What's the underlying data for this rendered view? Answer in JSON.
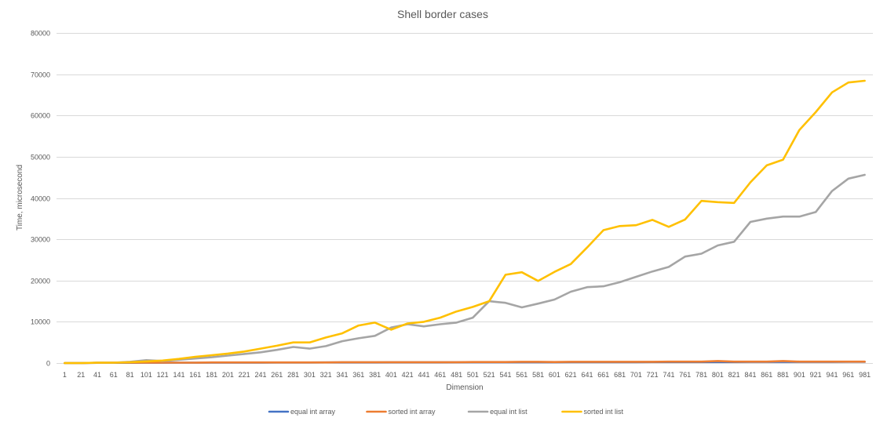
{
  "chart_data": {
    "type": "line",
    "title": "Shell border cases",
    "xlabel": "Dimension",
    "ylabel": "Time, microsecond",
    "ylim": [
      0,
      80000
    ],
    "yticks": [
      0,
      10000,
      20000,
      30000,
      40000,
      50000,
      60000,
      70000,
      80000
    ],
    "grid": true,
    "legend_position": "bottom",
    "categories": [
      1,
      21,
      41,
      61,
      81,
      101,
      121,
      141,
      161,
      181,
      201,
      221,
      241,
      261,
      281,
      301,
      321,
      341,
      361,
      381,
      401,
      421,
      441,
      461,
      481,
      501,
      521,
      541,
      561,
      581,
      601,
      621,
      641,
      661,
      681,
      701,
      721,
      741,
      761,
      781,
      801,
      821,
      841,
      861,
      881,
      901,
      921,
      941,
      961,
      981
    ],
    "series": [
      {
        "name": "equal int array",
        "color": "#4472c4",
        "values": [
          0,
          0,
          50,
          50,
          60,
          70,
          80,
          90,
          100,
          100,
          110,
          120,
          120,
          130,
          140,
          140,
          150,
          150,
          160,
          160,
          170,
          170,
          180,
          180,
          190,
          190,
          200,
          200,
          210,
          210,
          210,
          220,
          220,
          230,
          230,
          230,
          240,
          240,
          240,
          250,
          250,
          250,
          260,
          260,
          260,
          270,
          270,
          270,
          280,
          280
        ]
      },
      {
        "name": "sorted int array",
        "color": "#ed7d31",
        "values": [
          0,
          0,
          50,
          100,
          100,
          100,
          100,
          100,
          100,
          150,
          150,
          150,
          150,
          150,
          150,
          150,
          150,
          200,
          200,
          200,
          200,
          200,
          200,
          200,
          200,
          250,
          250,
          250,
          300,
          300,
          250,
          300,
          300,
          300,
          300,
          300,
          300,
          350,
          350,
          350,
          500,
          350,
          350,
          350,
          500,
          350,
          350,
          350,
          350,
          350
        ]
      },
      {
        "name": "equal int list",
        "color": "#a5a5a5",
        "values": [
          0,
          0,
          100,
          100,
          300,
          700,
          500,
          800,
          1100,
          1400,
          1800,
          2200,
          2600,
          3200,
          3900,
          3500,
          4100,
          5300,
          6000,
          6600,
          8600,
          9400,
          8900,
          9400,
          9800,
          11000,
          15000,
          14600,
          13500,
          14400,
          15400,
          17300,
          18400,
          18600,
          19600,
          20900,
          22200,
          23300,
          25800,
          26500,
          28500,
          29400,
          34200,
          35000,
          35500,
          35500,
          36600,
          41700,
          44700,
          45600
        ]
      },
      {
        "name": "sorted int list",
        "color": "#ffc000",
        "values": [
          0,
          0,
          100,
          100,
          200,
          400,
          600,
          1000,
          1500,
          1900,
          2300,
          2800,
          3500,
          4200,
          5000,
          5000,
          6200,
          7200,
          9100,
          9800,
          8100,
          9600,
          10000,
          11000,
          12500,
          13600,
          15000,
          21400,
          22000,
          19900,
          22100,
          24000,
          28000,
          32200,
          33200,
          33400,
          34700,
          33000,
          34800,
          39300,
          39000,
          38800,
          43800,
          47900,
          49300,
          56500,
          60800,
          65600,
          68000,
          68400
        ]
      }
    ]
  }
}
